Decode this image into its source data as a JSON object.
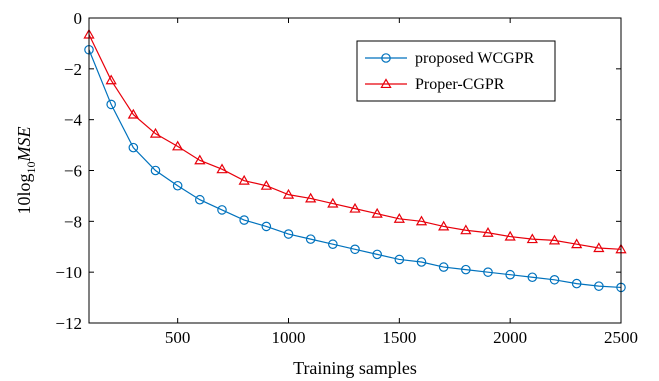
{
  "chart_data": {
    "type": "line",
    "xlabel": "Training samples",
    "ylabel": {
      "prefix": "10log",
      "sub": "10",
      "var": "MSE"
    },
    "xlim": [
      100,
      2500
    ],
    "ylim": [
      -12,
      0
    ],
    "x_ticks": [
      500,
      1000,
      1500,
      2000,
      2500
    ],
    "x_tick_labels": [
      "500",
      "1000",
      "1500",
      "2000",
      "2500"
    ],
    "y_ticks": [
      0,
      -2,
      -4,
      -6,
      -8,
      -10,
      -12
    ],
    "y_tick_labels": [
      "0",
      "−2",
      "−4",
      "−6",
      "−8",
      "−10",
      "−12"
    ],
    "grid": false,
    "legend_position": "top-right",
    "x": [
      100,
      200,
      300,
      400,
      500,
      600,
      700,
      800,
      900,
      1000,
      1100,
      1200,
      1300,
      1400,
      1500,
      1600,
      1700,
      1800,
      1900,
      2000,
      2100,
      2200,
      2300,
      2400,
      2500
    ],
    "series": [
      {
        "name": "proposed WCGPR",
        "color": "#0072bd",
        "marker": "circle",
        "values": [
          -1.25,
          -3.4,
          -5.1,
          -6.0,
          -6.6,
          -7.15,
          -7.55,
          -7.95,
          -8.2,
          -8.5,
          -8.7,
          -8.9,
          -9.1,
          -9.3,
          -9.5,
          -9.6,
          -9.8,
          -9.9,
          -10.0,
          -10.1,
          -10.2,
          -10.3,
          -10.45,
          -10.55,
          -10.6
        ]
      },
      {
        "name": "Proper-CGPR",
        "color": "#e8000b",
        "marker": "triangle",
        "values": [
          -0.65,
          -2.45,
          -3.8,
          -4.55,
          -5.05,
          -5.6,
          -5.95,
          -6.4,
          -6.6,
          -6.95,
          -7.1,
          -7.3,
          -7.5,
          -7.7,
          -7.9,
          -8.0,
          -8.2,
          -8.35,
          -8.45,
          -8.6,
          -8.7,
          -8.75,
          -8.9,
          -9.05,
          -9.1
        ]
      }
    ]
  }
}
